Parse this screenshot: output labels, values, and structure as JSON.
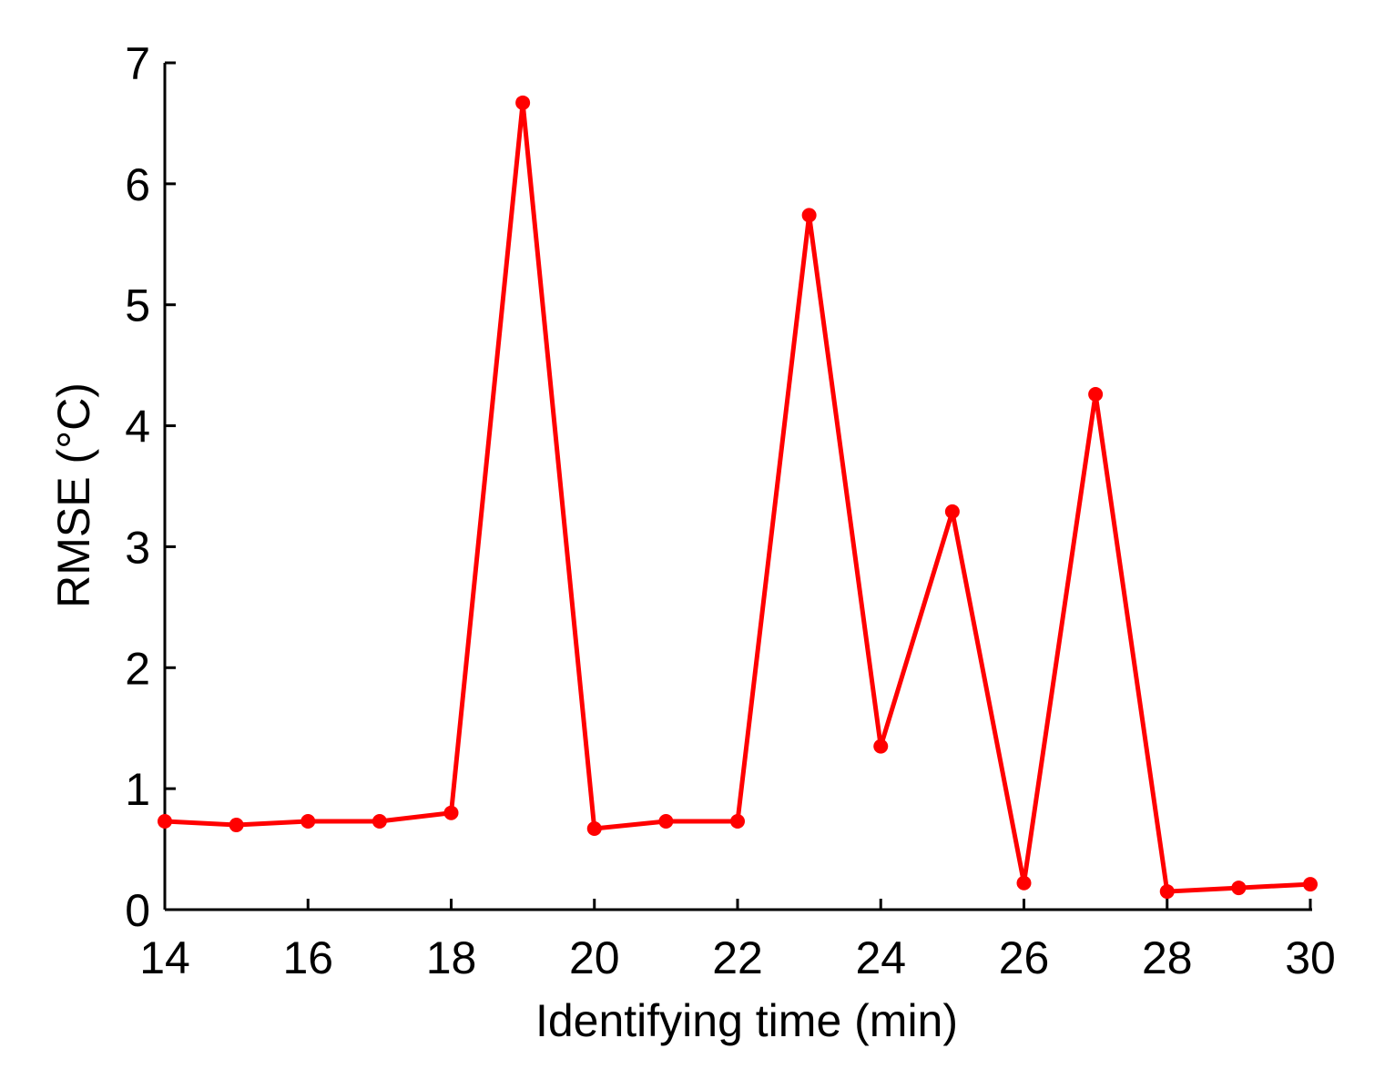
{
  "chart_data": {
    "type": "line",
    "title": "",
    "xlabel": "Identifying time (min)",
    "ylabel": "RMSE (°C)",
    "xlim": [
      14,
      30
    ],
    "ylim": [
      0,
      7
    ],
    "xticks": [
      "14",
      "16",
      "18",
      "20",
      "22",
      "24",
      "26",
      "28",
      "30"
    ],
    "yticks": [
      "0",
      "1",
      "2",
      "3",
      "4",
      "5",
      "6",
      "7"
    ],
    "grid": false,
    "legend": "none",
    "series": [
      {
        "color": "#ff0000",
        "marker": "circle",
        "x": [
          14,
          15,
          16,
          17,
          18,
          19,
          20,
          21,
          22,
          23,
          24,
          25,
          26,
          27,
          28,
          29,
          30
        ],
        "y": [
          0.73,
          0.7,
          0.73,
          0.73,
          0.8,
          6.67,
          0.67,
          0.73,
          0.73,
          5.74,
          1.35,
          3.29,
          0.22,
          4.26,
          0.15,
          0.18,
          0.21
        ]
      }
    ]
  }
}
